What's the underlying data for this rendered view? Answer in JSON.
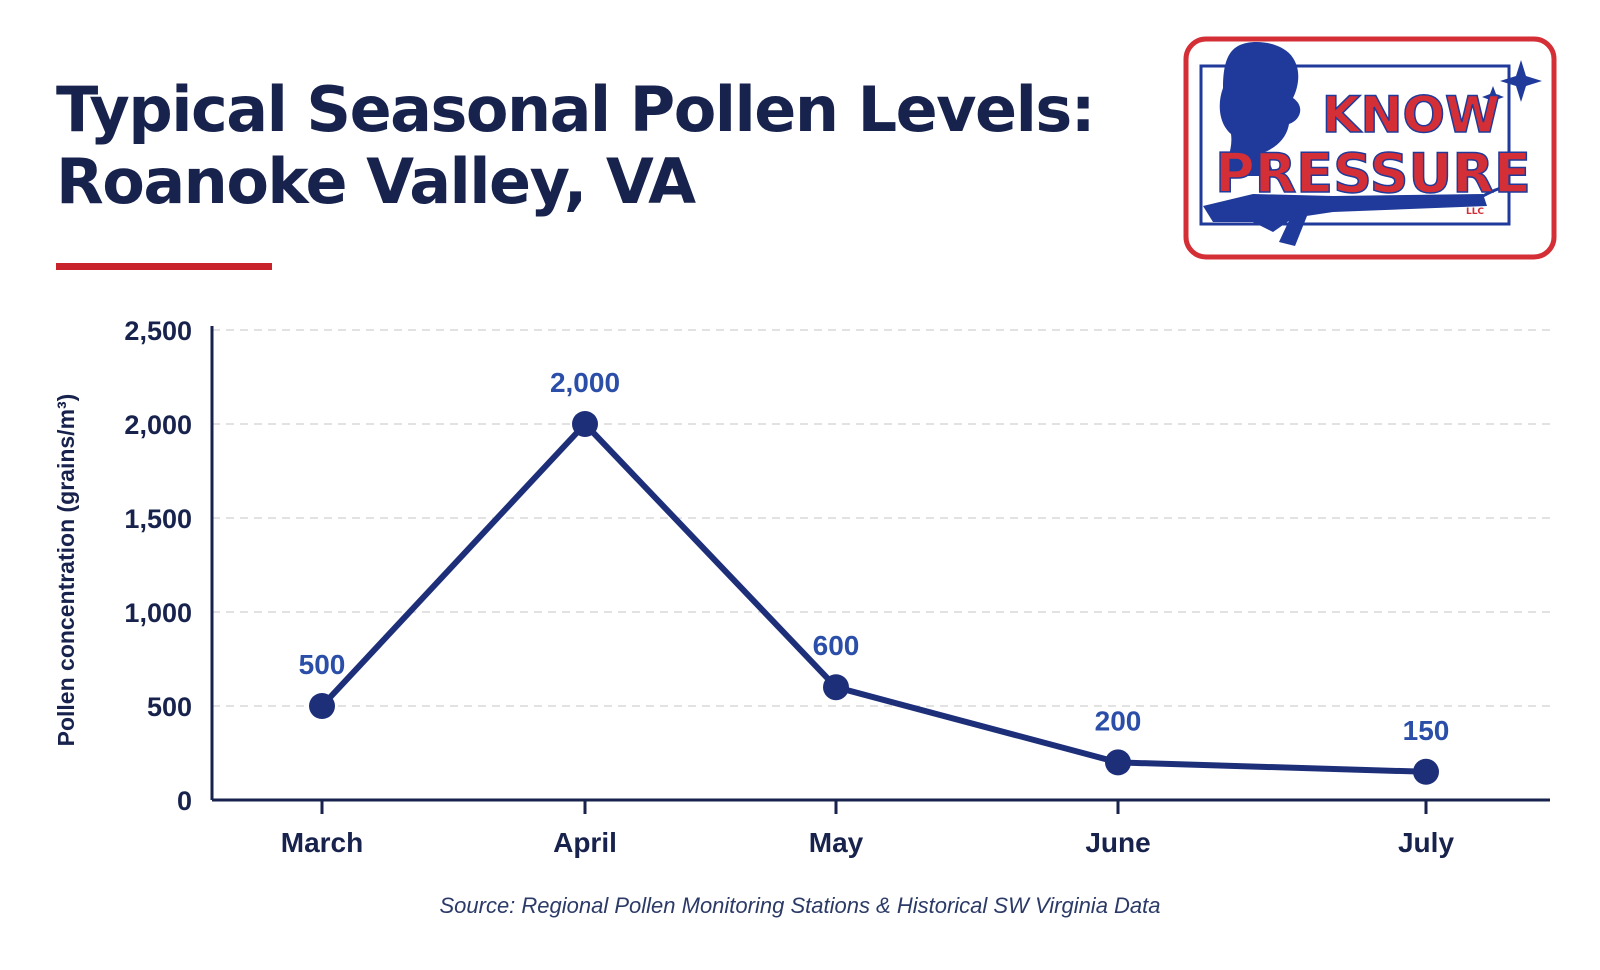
{
  "header": {
    "title_line1": "Typical Seasonal Pollen Levels:",
    "title_line2": "Roanoke Valley, VA"
  },
  "logo": {
    "line1": "KNOW",
    "line2": "PRESSURE",
    "suffix": "LLC",
    "icon": "pressure-washer-man-icon"
  },
  "colors": {
    "title": "#17224d",
    "accent_red": "#c8222b",
    "line": "#1e2f7a",
    "data_label": "#2b4fa8",
    "grid": "#d9d9d9",
    "axis": "#17224d"
  },
  "chart_data": {
    "type": "line",
    "categories": [
      "March",
      "April",
      "May",
      "June",
      "July"
    ],
    "series": [
      {
        "values": [
          500,
          2000,
          600,
          200,
          150
        ]
      }
    ],
    "data_labels": [
      "500",
      "2,000",
      "600",
      "200",
      "150"
    ],
    "ylabel": "Pollen concentration (grains/m³)",
    "ylim": [
      0,
      2500
    ],
    "yticks": [
      0,
      500,
      1000,
      1500,
      2000,
      2500
    ],
    "ytick_labels": [
      "0",
      "500",
      "1,000",
      "1,500",
      "2,000",
      "2,500"
    ],
    "grid": "horizontal-dashed",
    "legend": "none"
  },
  "footer": {
    "source": "Source: Regional Pollen Monitoring Stations & Historical SW Virginia Data"
  }
}
